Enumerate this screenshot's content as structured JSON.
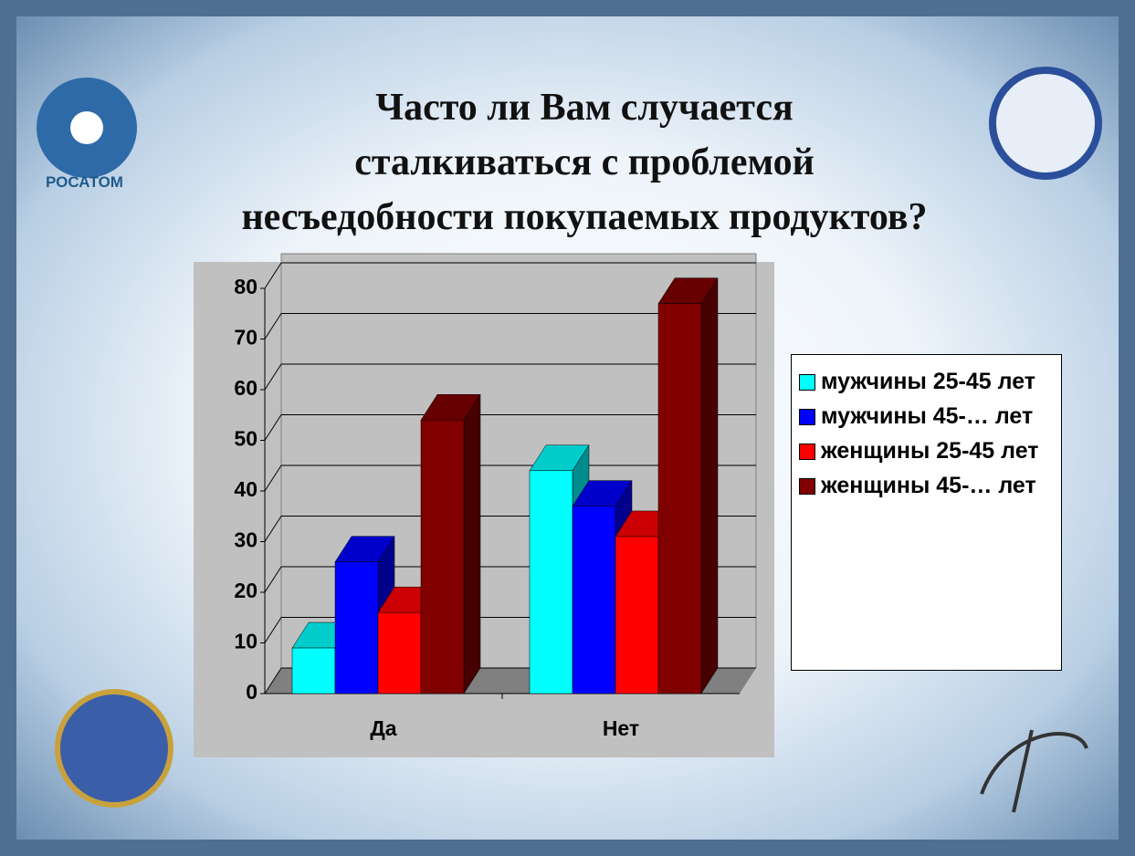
{
  "slide": {
    "logo_text": "РОСАТОМ"
  },
  "chart_data": {
    "type": "bar",
    "title": "Часто ли Вам случается\nсталкиваться с проблемой\nнесъедобности покупаемых продуктов?",
    "categories": [
      "Да",
      "Нет"
    ],
    "series": [
      {
        "name": "мужчины 25-45 лет",
        "color": "#00ffff",
        "values": [
          9,
          44
        ]
      },
      {
        "name": "мужчины 45-… лет",
        "color": "#0000ff",
        "values": [
          26,
          37
        ]
      },
      {
        "name": "женщины 25-45 лет",
        "color": "#ff0000",
        "values": [
          16,
          31
        ]
      },
      {
        "name": "женщины 45-… лет",
        "color": "#800000",
        "values": [
          54,
          77
        ]
      }
    ],
    "ylim": [
      0,
      80
    ],
    "yticks": [
      0,
      10,
      20,
      30,
      40,
      50,
      60,
      70,
      80
    ],
    "grid": true,
    "legend": "right"
  }
}
